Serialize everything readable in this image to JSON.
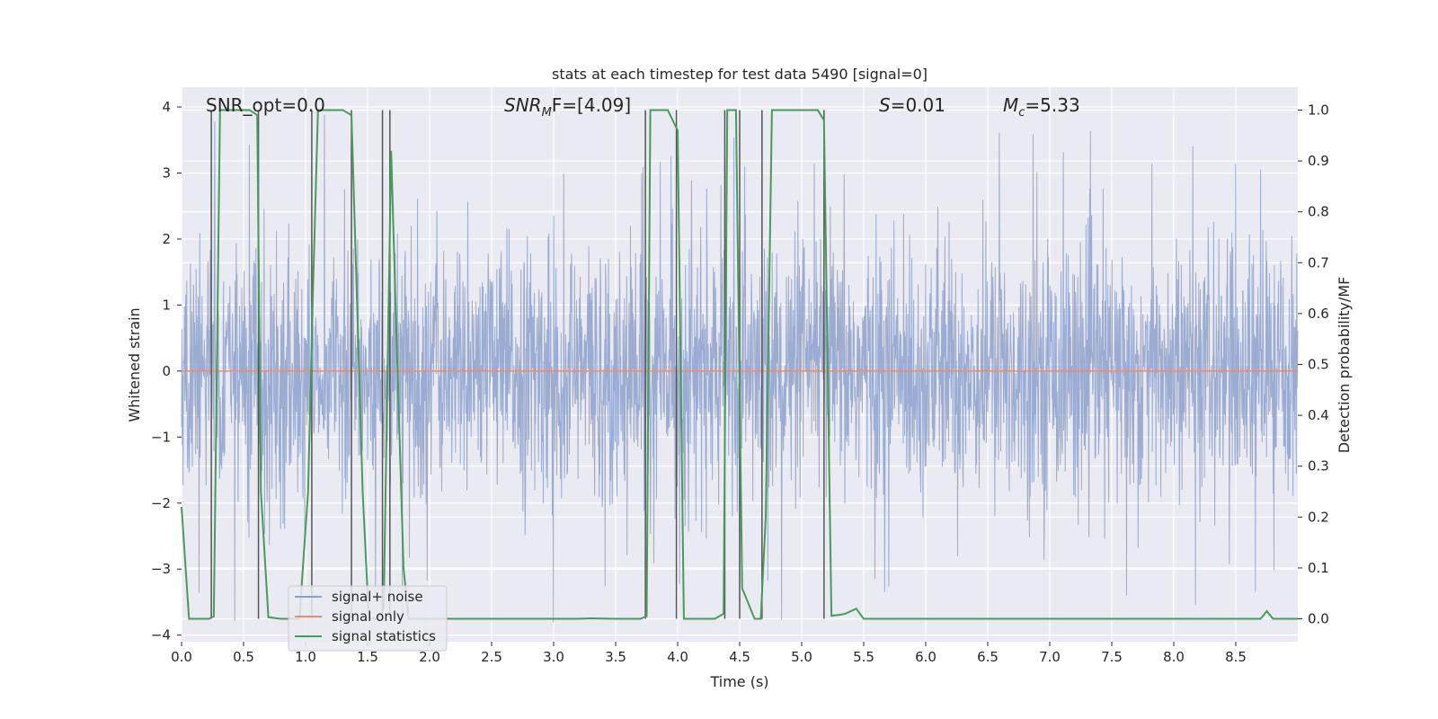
{
  "chart_data": {
    "type": "line",
    "title": "stats at each timestep for test data 5490 [signal=0]",
    "xlabel": "Time (s)",
    "ylabel": "Whitened strain",
    "y2label": "Detection probability/MF",
    "xlim": [
      0.0,
      9.0
    ],
    "ylim": [
      -4.1,
      4.3
    ],
    "y2lim": [
      -0.045,
      1.045
    ],
    "x_ticks": [
      0.0,
      0.5,
      1.0,
      1.5,
      2.0,
      2.5,
      3.0,
      3.5,
      4.0,
      4.5,
      5.0,
      5.5,
      6.0,
      6.5,
      7.0,
      7.5,
      8.0,
      8.5
    ],
    "x_tick_labels": [
      "0.0",
      "0.5",
      "1.0",
      "1.5",
      "2.0",
      "2.5",
      "3.0",
      "3.5",
      "4.0",
      "4.5",
      "5.0",
      "5.5",
      "6.0",
      "6.5",
      "7.0",
      "7.5",
      "8.0",
      "8.5"
    ],
    "y_ticks": [
      -4,
      -3,
      -2,
      -1,
      0,
      1,
      2,
      3,
      4
    ],
    "y_tick_labels": [
      "−4",
      "−3",
      "−2",
      "−1",
      "0",
      "1",
      "2",
      "3",
      "4"
    ],
    "y2_ticks": [
      0.0,
      0.1,
      0.2,
      0.3,
      0.4,
      0.5,
      0.6,
      0.7,
      0.8,
      0.9,
      1.0
    ],
    "y2_tick_labels": [
      "0.0",
      "0.1",
      "0.2",
      "0.3",
      "0.4",
      "0.5",
      "0.6",
      "0.7",
      "0.8",
      "0.9",
      "1.0"
    ],
    "grid": true,
    "legend_position": "lower-left",
    "annotations": {
      "snr_opt": "SNR_opt=0.0",
      "snr_mf_sym": "SNR",
      "snr_mf_sub": "M",
      "snr_mf_tail": "F=[4.09]",
      "s_sym": "S",
      "s_val": "=0.01",
      "mc_sym": "M",
      "mc_sub": "c",
      "mc_val": "=5.33"
    },
    "series": [
      {
        "name": "signal+ noise",
        "color": "#8da0cb",
        "description": "whitened strain noise, roughly within -2.5..2.5 with spikes to about ±3.5"
      },
      {
        "name": "signal only",
        "color": "#e58f6e",
        "values_description": "flat at 0",
        "x": [
          0.0,
          9.0
        ],
        "y": [
          0.0,
          0.0
        ]
      },
      {
        "name": "signal statistics",
        "color": "#4a9a5c",
        "axis": "right",
        "x": [
          0.0,
          0.06,
          0.12,
          0.22,
          0.26,
          0.31,
          0.36,
          0.55,
          0.61,
          0.64,
          0.7,
          0.8,
          0.95,
          1.02,
          1.06,
          1.1,
          1.13,
          1.3,
          1.37,
          1.46,
          1.51,
          1.58,
          1.63,
          1.69,
          1.74,
          1.79,
          1.83,
          1.9,
          2.4,
          3.2,
          3.3,
          3.5,
          3.7,
          3.75,
          3.78,
          3.92,
          4.0,
          4.05,
          4.3,
          4.37,
          4.4,
          4.42,
          4.47,
          4.52,
          4.62,
          4.67,
          4.71,
          4.76,
          4.85,
          5.13,
          5.18,
          5.24,
          5.31,
          5.35,
          5.44,
          5.5,
          5.6,
          6.0,
          7.0,
          8.0,
          8.7,
          8.75,
          8.8,
          8.85,
          9.0
        ],
        "y": [
          0.22,
          0.0,
          0.0,
          0.0,
          0.005,
          1.0,
          1.0,
          1.0,
          0.99,
          0.25,
          0.003,
          0.0,
          0.0,
          0.25,
          0.65,
          1.0,
          1.0,
          1.0,
          0.99,
          0.25,
          0.0,
          0.0,
          0.02,
          0.92,
          0.5,
          0.1,
          0.0,
          0.0,
          0.0,
          0.0,
          0.001,
          0.0,
          0.0,
          0.005,
          1.0,
          1.0,
          0.96,
          0.0,
          0.0,
          0.01,
          1.0,
          1.0,
          1.0,
          0.06,
          0.0,
          0.0,
          0.2,
          1.0,
          1.0,
          1.0,
          0.98,
          0.006,
          0.008,
          0.01,
          0.02,
          0.0,
          0.0,
          0.0,
          0.0,
          0.0,
          0.0,
          0.015,
          0.0,
          0.0,
          0.0
        ]
      }
    ],
    "vertical_markers_x": [
      0.24,
      0.62,
      1.05,
      1.37,
      1.62,
      1.68,
      3.74,
      3.99,
      4.38,
      4.5,
      4.68,
      5.18
    ]
  }
}
